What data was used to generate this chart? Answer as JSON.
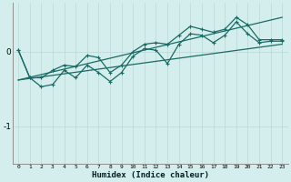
{
  "title": "",
  "xlabel": "Humidex (Indice chaleur)",
  "bg_color": "#d4eeed",
  "grid_color": "#b8d8d5",
  "line_color": "#1a6b65",
  "xlim": [
    -0.5,
    23.5
  ],
  "ylim": [
    -1.5,
    0.65
  ],
  "x_ticks": [
    0,
    1,
    2,
    3,
    4,
    5,
    6,
    7,
    8,
    9,
    10,
    11,
    12,
    13,
    14,
    15,
    16,
    17,
    18,
    19,
    20,
    21,
    22,
    23
  ],
  "y_ticks": [
    -1,
    0
  ],
  "jagged_line": [
    0.02,
    -0.35,
    -0.47,
    -0.44,
    -0.25,
    -0.35,
    -0.18,
    -0.28,
    -0.4,
    -0.28,
    -0.06,
    0.04,
    0.02,
    -0.16,
    0.1,
    0.24,
    0.22,
    0.12,
    0.22,
    0.4,
    0.24,
    0.12,
    0.14,
    0.14
  ],
  "upper_jagged_line": [
    0.02,
    -0.35,
    -0.35,
    -0.25,
    -0.18,
    -0.2,
    -0.05,
    -0.08,
    -0.28,
    -0.18,
    0.0,
    0.1,
    0.12,
    0.1,
    0.22,
    0.34,
    0.3,
    0.26,
    0.3,
    0.46,
    0.36,
    0.16,
    0.16,
    0.16
  ],
  "lower_trend_x": [
    0,
    23
  ],
  "lower_trend_y": [
    -0.38,
    0.1
  ],
  "upper_trend_x": [
    0,
    23
  ],
  "upper_trend_y": [
    -0.38,
    0.46
  ]
}
